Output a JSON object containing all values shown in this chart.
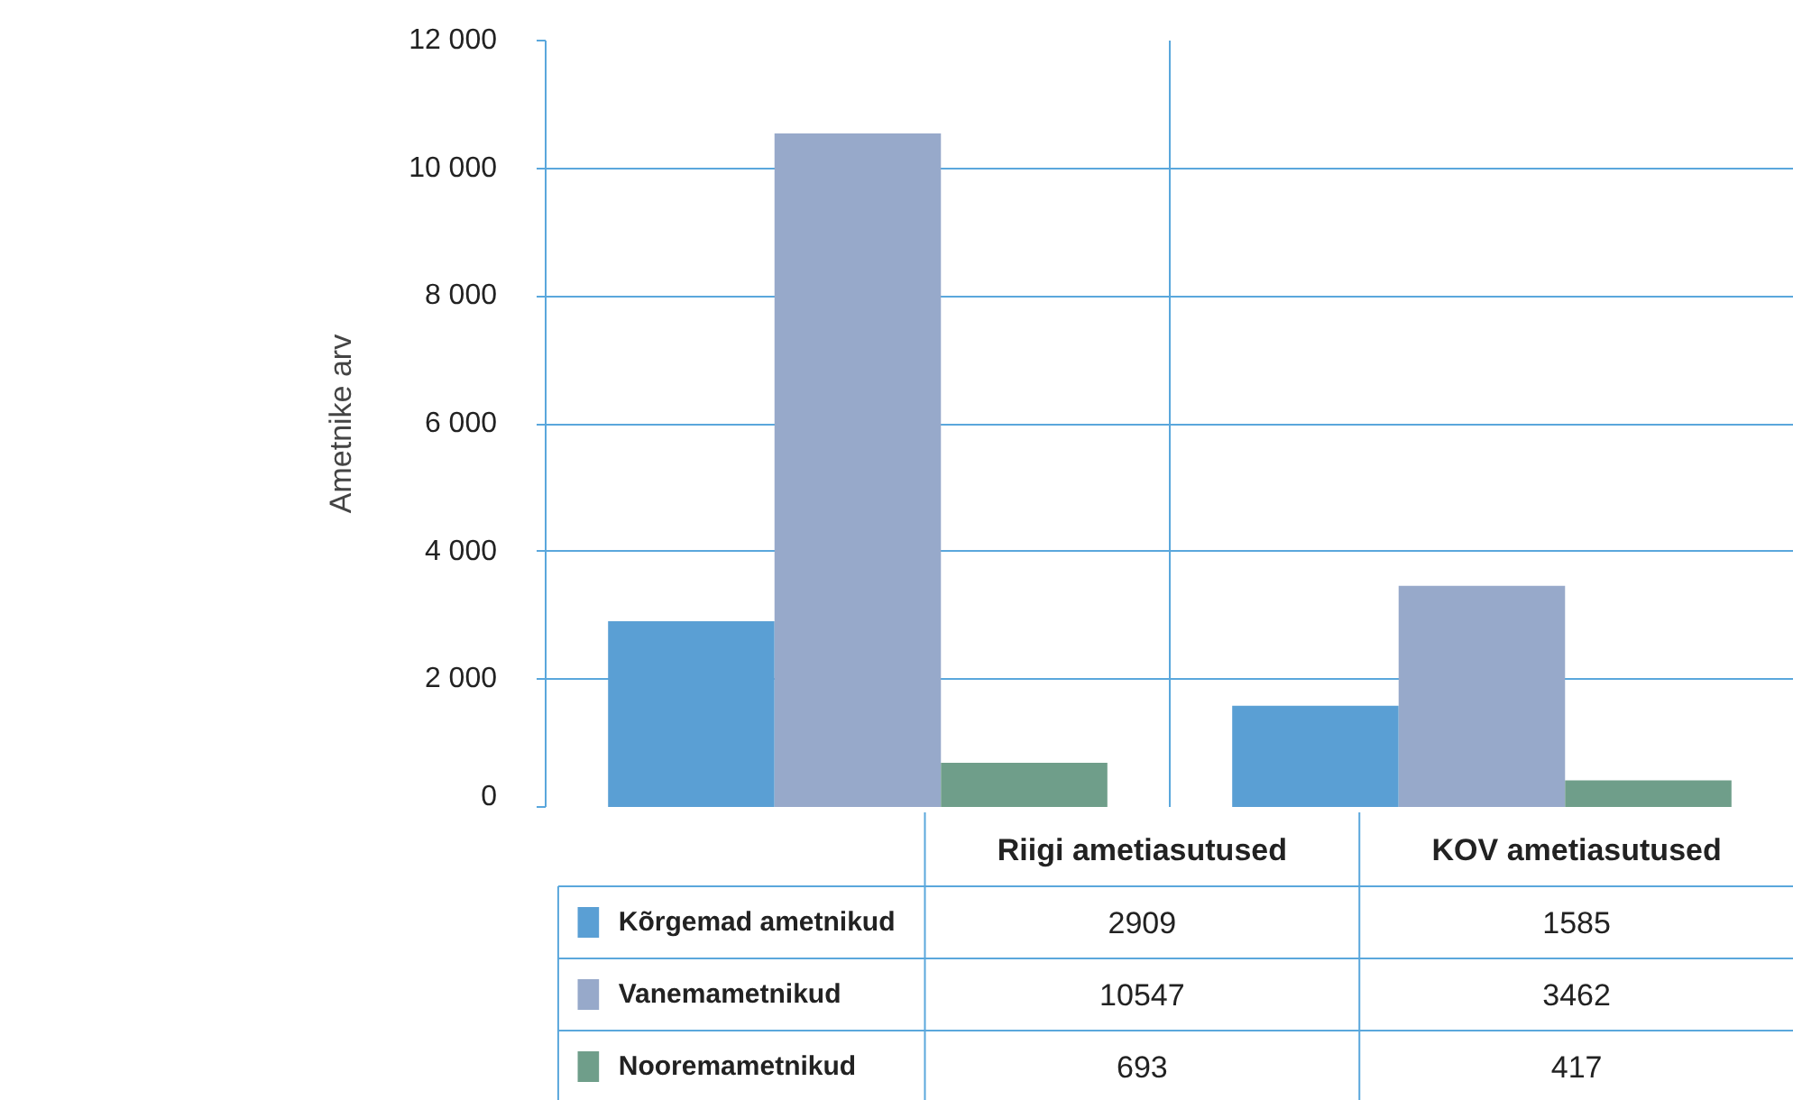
{
  "chart_data": {
    "type": "bar",
    "categories": [
      "Riigi ametiasutused",
      "KOV ametiasutused"
    ],
    "ylabel": "Ametnike arv",
    "series": [
      {
        "name": "Kõrgemad ametnikud",
        "color": "#5a9fd4",
        "values": [
          2909,
          1585
        ]
      },
      {
        "name": "Vanemametnikud",
        "color": "#97a9ca",
        "values": [
          10547,
          3462
        ]
      },
      {
        "name": "Nooremametnikud",
        "color": "#6f9e8a",
        "values": [
          693,
          417
        ]
      }
    ],
    "ylim": [
      0,
      12000
    ],
    "yticks": [
      0,
      {
        "value": 2000,
        "label": "2 000"
      },
      {
        "value": 4000,
        "label": "4 000"
      },
      {
        "value": 6000,
        "label": "6 000"
      },
      {
        "value": 8000,
        "label": "8 000"
      },
      {
        "value": 10000,
        "label": "10 000"
      },
      {
        "value": 12000,
        "label": "12 000"
      }
    ],
    "grid": true,
    "legend": "bottom",
    "data_labels": true
  }
}
